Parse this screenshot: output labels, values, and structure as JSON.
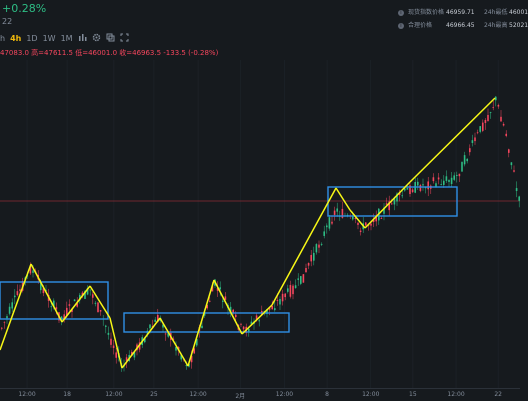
{
  "header": {
    "change_pct": "+0.28%",
    "sub_value": "22"
  },
  "info_panel": {
    "rows": [
      {
        "label": "现货指数价格",
        "value": "46959.71",
        "label2": "24h最低",
        "value2": "46001"
      },
      {
        "label": "合理价格",
        "value": "46966.45",
        "label2": "24h最高",
        "value2": "52021"
      }
    ]
  },
  "toolbar": {
    "items": [
      "h",
      "4h",
      "1D",
      "1W",
      "1M"
    ],
    "active": "4h",
    "icons": [
      "chart-type-icon",
      "settings-icon",
      "layers-icon",
      "fullscreen-icon"
    ]
  },
  "ohlc": "47083.0 高=47611.5 低=46001.0 收=46963.5 -133.5 (-0.28%)",
  "x_axis": {
    "ticks": [
      {
        "label": "12:00",
        "frac": 0.052
      },
      {
        "label": "18",
        "frac": 0.129
      },
      {
        "label": "12:00",
        "frac": 0.219
      },
      {
        "label": "25",
        "frac": 0.296
      },
      {
        "label": "12:00",
        "frac": 0.381
      },
      {
        "label": "2月",
        "frac": 0.462
      },
      {
        "label": "12:00",
        "frac": 0.547
      },
      {
        "label": "8",
        "frac": 0.629
      },
      {
        "label": "12:00",
        "frac": 0.713
      },
      {
        "label": "15",
        "frac": 0.794
      },
      {
        "label": "12:00",
        "frac": 0.877
      },
      {
        "label": "22",
        "frac": 0.958
      }
    ]
  },
  "colors": {
    "up": "#2ebd85",
    "down": "#f6465d",
    "annotation_line": "#f7f716",
    "annotation_box": "#2f8fe6",
    "reference_line": "#8b2d35"
  }
}
